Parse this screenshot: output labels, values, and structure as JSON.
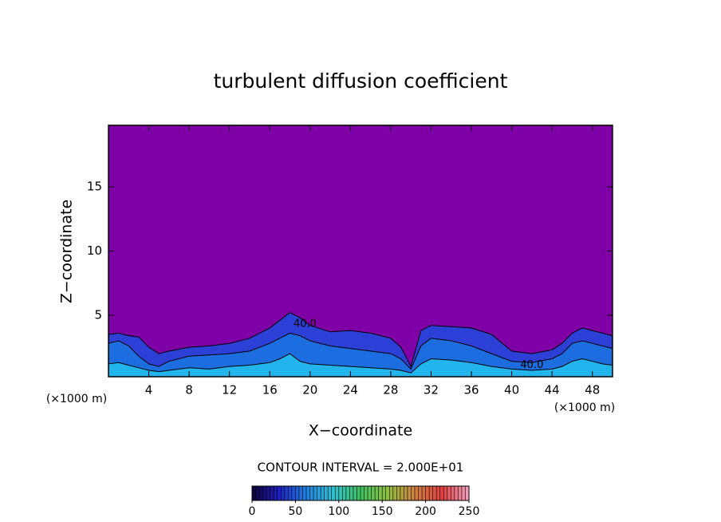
{
  "chart_data": {
    "type": "contour",
    "title": "turbulent diffusion coefficient",
    "xlabel": "X−coordinate",
    "ylabel": "Z−coordinate",
    "y_unit_label": "(×1000 m)",
    "x_unit_label": "(×1000 m)",
    "xlim": [
      0,
      50
    ],
    "ylim": [
      0.2,
      19.8
    ],
    "xticks": [
      4,
      8,
      12,
      16,
      20,
      24,
      28,
      32,
      36,
      40,
      44,
      48
    ],
    "yticks": [
      5,
      10,
      15
    ],
    "background_color": "#8000a8",
    "x": [
      0,
      1,
      2,
      3,
      4,
      5,
      6,
      8,
      10,
      12,
      14,
      16,
      17,
      18,
      19,
      20,
      22,
      24,
      26,
      28,
      29,
      30,
      31,
      32,
      34,
      36,
      38,
      40,
      42,
      44,
      45,
      46,
      47,
      48,
      49,
      50
    ],
    "layers": [
      {
        "color": "#2c3fd6",
        "top": [
          3.5,
          3.6,
          3.4,
          3.3,
          2.5,
          2.0,
          2.2,
          2.5,
          2.6,
          2.8,
          3.2,
          4.0,
          4.6,
          5.2,
          4.8,
          4.2,
          3.7,
          3.8,
          3.6,
          3.2,
          2.5,
          1.0,
          3.8,
          4.2,
          4.1,
          4.0,
          3.5,
          2.2,
          2.0,
          2.3,
          2.8,
          3.6,
          4.0,
          3.8,
          3.6,
          3.4
        ]
      },
      {
        "color": "#1c6ee0",
        "top": [
          2.8,
          3.0,
          2.6,
          1.8,
          1.2,
          1.0,
          1.4,
          1.8,
          1.9,
          2.0,
          2.2,
          2.8,
          3.2,
          3.6,
          3.4,
          3.0,
          2.6,
          2.4,
          2.2,
          2.0,
          1.6,
          0.8,
          2.6,
          3.2,
          3.0,
          2.6,
          2.0,
          1.4,
          1.3,
          1.6,
          2.0,
          2.8,
          3.0,
          2.8,
          2.6,
          2.4
        ]
      },
      {
        "color": "#22b4ec",
        "top": [
          1.2,
          1.3,
          1.1,
          0.9,
          0.7,
          0.6,
          0.7,
          0.9,
          0.8,
          1.0,
          1.1,
          1.3,
          1.6,
          2.0,
          1.4,
          1.2,
          1.1,
          1.0,
          0.9,
          0.8,
          0.7,
          0.5,
          1.2,
          1.6,
          1.5,
          1.3,
          1.0,
          0.8,
          0.7,
          0.8,
          1.0,
          1.4,
          1.6,
          1.4,
          1.2,
          1.1
        ]
      }
    ],
    "contour_labels": [
      {
        "text": "40.0",
        "x": 19.5,
        "y": 4.3
      },
      {
        "text": "40.0",
        "x": 42,
        "y": 1.1
      }
    ],
    "contour_interval_label": "CONTOUR INTERVAL = 2.000E+01",
    "colorbar": {
      "lim": [
        0,
        250
      ],
      "ticks": [
        0,
        50,
        100,
        150,
        200,
        250
      ],
      "colors": [
        "#10003a",
        "#2020c0",
        "#2080e0",
        "#30c0d0",
        "#40c060",
        "#90c040",
        "#d08040",
        "#e04040",
        "#f0a0c0"
      ]
    }
  }
}
